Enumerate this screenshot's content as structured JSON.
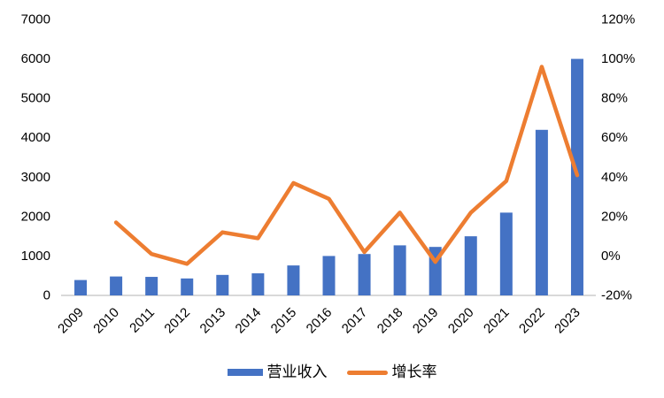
{
  "chart_data": {
    "type": "combo",
    "title": "",
    "categories": [
      "2009",
      "2010",
      "2011",
      "2012",
      "2013",
      "2014",
      "2015",
      "2016",
      "2017",
      "2018",
      "2019",
      "2020",
      "2021",
      "2022",
      "2023"
    ],
    "series": [
      {
        "name": "营业收入",
        "type": "bar",
        "axis": "left",
        "color": "#4472C4",
        "values": [
          390,
          480,
          470,
          430,
          520,
          560,
          760,
          1000,
          1050,
          1270,
          1230,
          1500,
          2100,
          4200,
          6000
        ]
      },
      {
        "name": "增长率",
        "type": "line",
        "axis": "right",
        "color": "#ED7D31",
        "values": [
          null,
          17,
          1,
          -4,
          12,
          9,
          37,
          29,
          2,
          22,
          -3,
          22,
          38,
          96,
          41
        ]
      }
    ],
    "left_axis": {
      "min": 0,
      "max": 7000,
      "step": 1000,
      "tick_labels": [
        "0",
        "1000",
        "2000",
        "3000",
        "4000",
        "5000",
        "6000",
        "7000"
      ]
    },
    "right_axis": {
      "min": -20,
      "max": 120,
      "step": 20,
      "tick_labels": [
        "-20%",
        "0%",
        "20%",
        "40%",
        "60%",
        "80%",
        "100%",
        "120%"
      ]
    },
    "grid": false,
    "legend_position": "bottom"
  },
  "legend": {
    "bar_label": "营业收入",
    "line_label": "增长率"
  },
  "colors": {
    "bar": "#4472C4",
    "line": "#ED7D31",
    "baseline": "#D9D9D9",
    "text": "#000000",
    "background": "#FFFFFF"
  }
}
